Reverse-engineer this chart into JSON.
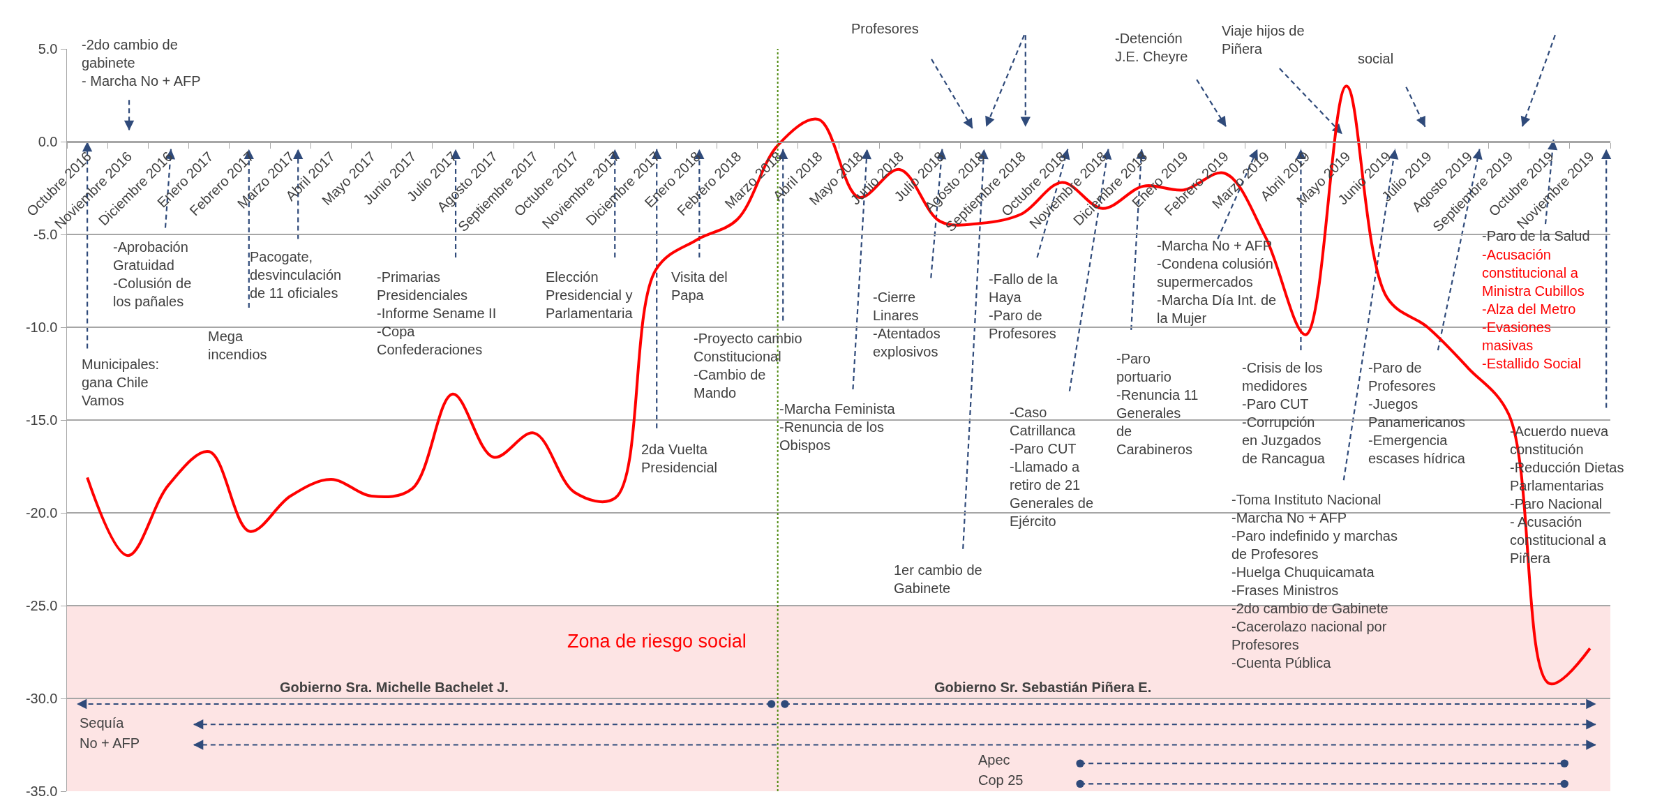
{
  "chart_data": {
    "type": "line",
    "categories": [
      "Octubre 2016",
      "Noviembre 2016",
      "Diciembre 2016",
      "Enero 2017",
      "Febrero 2017",
      "Marzo 2017",
      "Abril 2017",
      "Mayo 2017",
      "Junio 2017",
      "Julio 2017",
      "Agosto 2017",
      "Septiembre 2017",
      "Octubre 2017",
      "Noviembre 2017",
      "Diciembre 2017",
      "Enero 2018",
      "Febrero 2018",
      "Marzo 2018",
      "Abril 2018",
      "Mayo 2018",
      "Junio 2018",
      "Julio 2018",
      "Agosto 2018",
      "Septiembre 2018",
      "Octubre 2018",
      "Noviembre 2018",
      "Diciembre 2018",
      "Enero 2019",
      "Febrero 2019",
      "Marzo 2019",
      "Abril 2019",
      "Mayo 2019",
      "Junio 2019",
      "Julio 2019",
      "Agosto 2019",
      "Septiembre 2019",
      "Octubre 2019",
      "Noviembre 2019"
    ],
    "values": [
      -18.1,
      -22.3,
      -18.5,
      -16.7,
      -21.0,
      -19.1,
      -18.2,
      -19.1,
      -18.7,
      -13.6,
      -17.0,
      -15.7,
      -18.9,
      -19.2,
      -6.9,
      -5.3,
      -4.2,
      -0.2,
      1.2,
      -3.0,
      -1.5,
      -4.3,
      -4.4,
      -3.9,
      -2.2,
      -3.6,
      -2.4,
      -2.6,
      -1.7,
      -5.1,
      -10.4,
      3.0,
      -8.4,
      -10.0,
      -12.2,
      -14.7,
      -29.2,
      -27.3
    ],
    "color": "#ff0000",
    "ylim": [
      -35,
      5
    ],
    "yticks": [
      {
        "value": -35,
        "label": "-35.0"
      },
      {
        "value": -30,
        "label": "-30.0"
      },
      {
        "value": -25,
        "label": "-25.0"
      },
      {
        "value": -20,
        "label": "-20.0"
      },
      {
        "value": -15,
        "label": "-15.0"
      },
      {
        "value": -10,
        "label": "-10.0"
      },
      {
        "value": -5,
        "label": "-5.0"
      },
      {
        "value": 0,
        "label": "0.0"
      },
      {
        "value": 5,
        "label": "5.0"
      }
    ],
    "grid": "y",
    "bands": [
      {
        "axis": "y",
        "from": -35,
        "to": -25,
        "label": "Zona de riesgo social",
        "color": "#fde4e4"
      }
    ],
    "ref_lines": [
      {
        "axis": "x",
        "value": "Marzo 2018",
        "color": "#4f8a10",
        "line_style": "dotted"
      }
    ],
    "annotations": [
      "-2do cambio de\ngabinete\n- Marcha No + AFP",
      "Profesores",
      "-Detención\nJ.E. Cheyre",
      "Viaje hijos de\nPiñera",
      "social",
      "Municipales:\ngana Chile\nVamos",
      "-Aprobación\nGratuidad\n-Colusión de\nlos pañales",
      "Mega\nincendios",
      "Pacogate,\ndesvinculación\nde 11 oficiales",
      "-Primarias\nPresidenciales\n-Informe Sename II\n-Copa\nConfederaciones",
      "Elección\nPresidencial y\nParlamentaria",
      "2da Vuelta\nPresidencial",
      "Visita del\nPapa",
      "-Proyecto cambio\nConstitucional\n-Cambio de\nMando",
      "-Marcha Feminista\n-Renuncia de los\nObispos",
      "-Cierre\nLinares\n-Atentados\nexplosivos",
      "1er cambio de\nGabinete",
      "-Fallo de la\nHaya\n-Paro de\nProfesores",
      "-Caso\nCatrillanca\n-Paro CUT\n-Llamado a\nretiro de 21\nGenerales de\nEjército",
      "-Paro\nportuario\n-Renuncia 11\nGenerales\nde\nCarabineros",
      "-Marcha No + AFP\n-Condena colusión\nsupermercados\n-Marcha Día Int. de\nla Mujer",
      "-Crisis de los\nmedidores\n-Paro CUT\n-Corrupción\nen Juzgados\nde Rancagua",
      "-Toma Instituto Nacional\n-Marcha No + AFP\n-Paro indefinido y marchas\nde Profesores\n-Huelga Chuquicamata\n-Frases Ministros\n-2do cambio de Gabinete\n-Cacerolazo nacional por\nProfesores\n-Cuenta Pública",
      "-Paro de\nProfesores\n-Juegos\nPanamericanos\n-Emergencia\nescases hídrica",
      "-Paro de la Salud",
      "-Acusación\nconstitucional a\nMinistra Cubillos\n-Alza del Metro\n-Evasiones\nmasivas\n-Estallido Social",
      "-Acuerdo nueva\nconstitución\n-Reducción Dietas\nParlamentarias\n-Paro Nacional\n- Acusación\nconstitucional a\nPiñera",
      "Gobierno Sra. Michelle Bachelet J.",
      "Gobierno Sr. Sebastián Piñera E.",
      "Sequía",
      "No + AFP",
      "Apec",
      "Cop 25"
    ]
  }
}
